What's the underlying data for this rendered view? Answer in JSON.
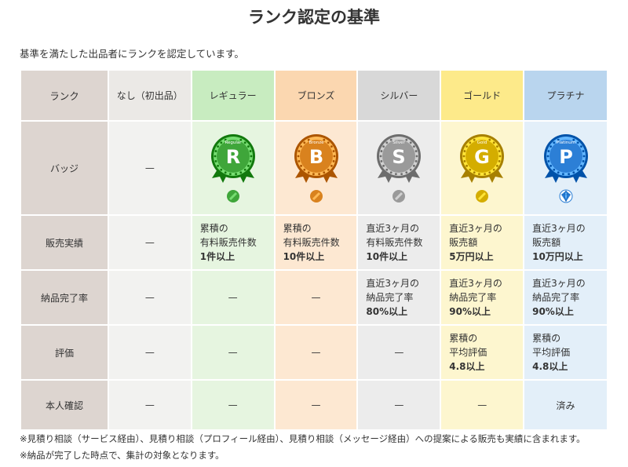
{
  "page": {
    "title": "ランク認定の基準",
    "intro": "基準を満たした出品者にランクを認定しています。"
  },
  "table": {
    "corner": "ランク",
    "columns": [
      {
        "key": "none",
        "label": "なし（初出品）"
      },
      {
        "key": "regular",
        "label": "レギュラー",
        "badge_letter": "R",
        "badge_ribbon": "Regular",
        "color": "#3fa63a"
      },
      {
        "key": "bronze",
        "label": "ブロンズ",
        "badge_letter": "B",
        "badge_ribbon": "Bronze",
        "color": "#d9821e"
      },
      {
        "key": "silver",
        "label": "シルバー",
        "badge_letter": "S",
        "badge_ribbon": "Silver",
        "color": "#9a9a9a"
      },
      {
        "key": "gold",
        "label": "ゴールド",
        "badge_letter": "G",
        "badge_ribbon": "Gold",
        "color": "#d4ad00"
      },
      {
        "key": "platinum",
        "label": "プラチナ",
        "badge_letter": "P",
        "badge_ribbon": "Platinum",
        "color": "#2c7fd6"
      }
    ],
    "rows": {
      "badge": {
        "label": "バッジ",
        "none": "—"
      },
      "sales": {
        "label": "販売実績",
        "none": "—",
        "regular": [
          "累積の",
          "有料販売件数",
          "1件以上"
        ],
        "bronze": [
          "累積の",
          "有料販売件数",
          "10件以上"
        ],
        "silver": [
          "直近3ヶ月の",
          "有料販売件数",
          "10件以上"
        ],
        "gold": [
          "直近3ヶ月の",
          "販売額",
          "5万円以上"
        ],
        "platinum": [
          "直近3ヶ月の",
          "販売額",
          "10万円以上"
        ]
      },
      "delivery": {
        "label": "納品完了率",
        "none": "—",
        "regular": "—",
        "bronze": "—",
        "silver": [
          "直近3ヶ月の",
          "納品完了率",
          "80%以上"
        ],
        "gold": [
          "直近3ヶ月の",
          "納品完了率",
          "90%以上"
        ],
        "platinum": [
          "直近3ヶ月の",
          "納品完了率",
          "90%以上"
        ]
      },
      "rating": {
        "label": "評価",
        "none": "—",
        "regular": "—",
        "bronze": "—",
        "silver": "—",
        "gold": [
          "累積の",
          "平均評価",
          "4.8以上"
        ],
        "platinum": [
          "累積の",
          "平均評価",
          "4.8以上"
        ]
      },
      "identity": {
        "label": "本人確認",
        "none": "—",
        "regular": "—",
        "bronze": "—",
        "silver": "—",
        "gold": "—",
        "platinum": "済み"
      }
    }
  },
  "notes": [
    "※見積り相談（サービス経由）、見積り相談（プロフィール経由）、見積り相談（メッセージ経由）への提案による販売も実績に含まれます。",
    "※納品が完了した時点で、集計の対象となります。"
  ]
}
